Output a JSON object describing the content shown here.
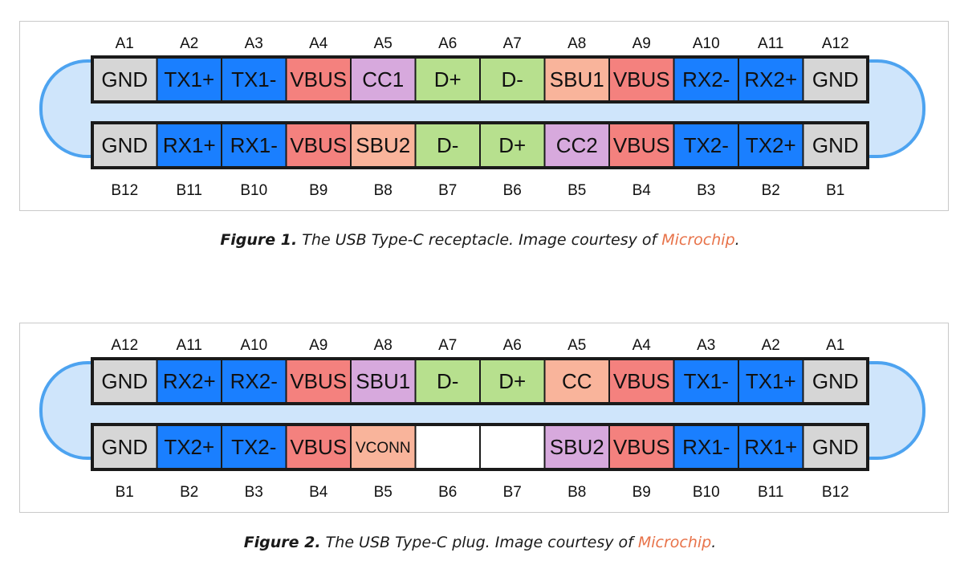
{
  "colors": {
    "gnd": "#d6d6d6",
    "blue": "#1a7fff",
    "vbus": "#f4817e",
    "cc": "#d7a9dd",
    "sbu": "#f9b49b",
    "d": "#b7e08e",
    "empty": "#ffffff",
    "shell_fill": "#cfe5fb",
    "shell_stroke": "#4da3f0",
    "caption_link": "#e8734a"
  },
  "figures": [
    {
      "top_labels": [
        "A1",
        "A2",
        "A3",
        "A4",
        "A5",
        "A6",
        "A7",
        "A8",
        "A9",
        "A10",
        "A11",
        "A12"
      ],
      "top_row": [
        {
          "t": "GND",
          "c": "gnd"
        },
        {
          "t": "TX1+",
          "c": "blue"
        },
        {
          "t": "TX1-",
          "c": "blue"
        },
        {
          "t": "VBUS",
          "c": "vbus"
        },
        {
          "t": "CC1",
          "c": "cc"
        },
        {
          "t": "D+",
          "c": "d"
        },
        {
          "t": "D-",
          "c": "d"
        },
        {
          "t": "SBU1",
          "c": "sbu"
        },
        {
          "t": "VBUS",
          "c": "vbus"
        },
        {
          "t": "RX2-",
          "c": "blue"
        },
        {
          "t": "RX2+",
          "c": "blue"
        },
        {
          "t": "GND",
          "c": "gnd"
        }
      ],
      "bottom_row": [
        {
          "t": "GND",
          "c": "gnd"
        },
        {
          "t": "RX1+",
          "c": "blue"
        },
        {
          "t": "RX1-",
          "c": "blue"
        },
        {
          "t": "VBUS",
          "c": "vbus"
        },
        {
          "t": "SBU2",
          "c": "sbu"
        },
        {
          "t": "D-",
          "c": "d"
        },
        {
          "t": "D+",
          "c": "d"
        },
        {
          "t": "CC2",
          "c": "cc"
        },
        {
          "t": "VBUS",
          "c": "vbus"
        },
        {
          "t": "TX2-",
          "c": "blue"
        },
        {
          "t": "TX2+",
          "c": "blue"
        },
        {
          "t": "GND",
          "c": "gnd"
        }
      ],
      "bottom_labels": [
        "B12",
        "B11",
        "B10",
        "B9",
        "B8",
        "B7",
        "B6",
        "B5",
        "B4",
        "B3",
        "B2",
        "B1"
      ]
    },
    {
      "top_labels": [
        "A12",
        "A11",
        "A10",
        "A9",
        "A8",
        "A7",
        "A6",
        "A5",
        "A4",
        "A3",
        "A2",
        "A1"
      ],
      "top_row": [
        {
          "t": "GND",
          "c": "gnd"
        },
        {
          "t": "RX2+",
          "c": "blue"
        },
        {
          "t": "RX2-",
          "c": "blue"
        },
        {
          "t": "VBUS",
          "c": "vbus"
        },
        {
          "t": "SBU1",
          "c": "cc"
        },
        {
          "t": "D-",
          "c": "d"
        },
        {
          "t": "D+",
          "c": "d"
        },
        {
          "t": "CC",
          "c": "sbu"
        },
        {
          "t": "VBUS",
          "c": "vbus"
        },
        {
          "t": "TX1-",
          "c": "blue"
        },
        {
          "t": "TX1+",
          "c": "blue"
        },
        {
          "t": "GND",
          "c": "gnd"
        }
      ],
      "bottom_row": [
        {
          "t": "GND",
          "c": "gnd"
        },
        {
          "t": "TX2+",
          "c": "blue"
        },
        {
          "t": "TX2-",
          "c": "blue"
        },
        {
          "t": "VBUS",
          "c": "vbus"
        },
        {
          "t": "VCONN",
          "c": "sbu"
        },
        {
          "t": "",
          "c": "empty"
        },
        {
          "t": "",
          "c": "empty"
        },
        {
          "t": "SBU2",
          "c": "cc"
        },
        {
          "t": "VBUS",
          "c": "vbus"
        },
        {
          "t": "RX1-",
          "c": "blue"
        },
        {
          "t": "RX1+",
          "c": "blue"
        },
        {
          "t": "GND",
          "c": "gnd"
        }
      ],
      "bottom_labels": [
        "B1",
        "B2",
        "B3",
        "B4",
        "B5",
        "B6",
        "B7",
        "B8",
        "B9",
        "B10",
        "B11",
        "B12"
      ]
    }
  ],
  "captions": [
    {
      "bold": "Figure 1.",
      "text": " The USB Type-C receptacle. Image courtesy of ",
      "link": "Microchip",
      "end": "."
    },
    {
      "bold": "Figure 2.",
      "text": " The USB Type-C plug. Image courtesy of ",
      "link": "Microchip",
      "end": "."
    }
  ]
}
